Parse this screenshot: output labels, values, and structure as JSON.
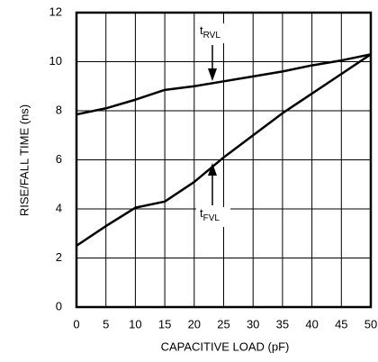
{
  "chart_data": {
    "type": "line",
    "x_label": "CAPACITIVE LOAD (pF)",
    "y_label": "RISE/FALL TIME (ns)",
    "x": [
      0,
      5,
      10,
      15,
      20,
      25,
      30,
      35,
      40,
      45,
      50
    ],
    "series": [
      {
        "label": "t",
        "label_sub": "RVL",
        "color": "#000000",
        "values": [
          7.85,
          8.1,
          8.45,
          8.85,
          9.0,
          9.2,
          9.4,
          9.6,
          9.85,
          10.05,
          10.3
        ]
      },
      {
        "label": "t",
        "label_sub": "FVL",
        "color": "#000000",
        "values": [
          2.5,
          3.3,
          4.05,
          4.3,
          5.1,
          6.1,
          7.0,
          7.9,
          8.7,
          9.5,
          10.3
        ]
      }
    ],
    "xlim": [
      0,
      50
    ],
    "xticks": [
      0,
      5,
      10,
      15,
      20,
      25,
      30,
      35,
      40,
      45,
      50
    ],
    "ylim": [
      0,
      12
    ],
    "yticks": [
      0,
      2,
      4,
      6,
      8,
      10,
      12
    ],
    "grid": true
  }
}
